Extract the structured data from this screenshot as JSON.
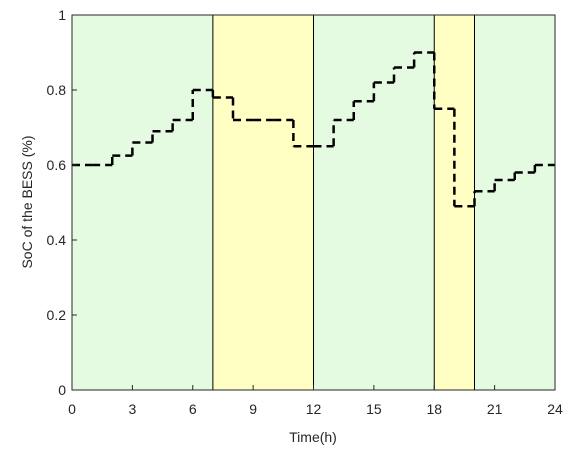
{
  "chart_data": {
    "type": "step",
    "xlabel": "Time(h)",
    "ylabel": "SoC of the BESS (%)",
    "x": [
      0,
      1,
      2,
      3,
      4,
      5,
      6,
      7,
      8,
      9,
      10,
      11,
      12,
      13,
      14,
      15,
      16,
      17,
      18,
      19,
      20,
      21,
      22,
      23
    ],
    "series": [
      {
        "color": "#000000",
        "values": [
          0.6,
          0.6,
          0.625,
          0.66,
          0.69,
          0.72,
          0.8,
          0.78,
          0.72,
          0.72,
          0.72,
          0.65,
          0.65,
          0.72,
          0.77,
          0.82,
          0.86,
          0.9,
          0.75,
          0.49,
          0.53,
          0.56,
          0.58,
          0.6
        ]
      }
    ],
    "regions": [
      {
        "start": 0,
        "end": 7,
        "color": "#e5fbe1"
      },
      {
        "start": 7,
        "end": 12,
        "color": "#ffffc4"
      },
      {
        "start": 12,
        "end": 18,
        "color": "#e5fbe1"
      },
      {
        "start": 18,
        "end": 20,
        "color": "#ffffc4"
      },
      {
        "start": 20,
        "end": 24,
        "color": "#e5fbe1"
      }
    ],
    "xlim": [
      0,
      24
    ],
    "xticks": [
      0,
      3,
      6,
      9,
      12,
      15,
      18,
      21,
      24
    ],
    "ylim": [
      0,
      1
    ],
    "yticks": [
      0,
      0.2,
      0.4,
      0.6,
      0.8,
      1
    ]
  }
}
